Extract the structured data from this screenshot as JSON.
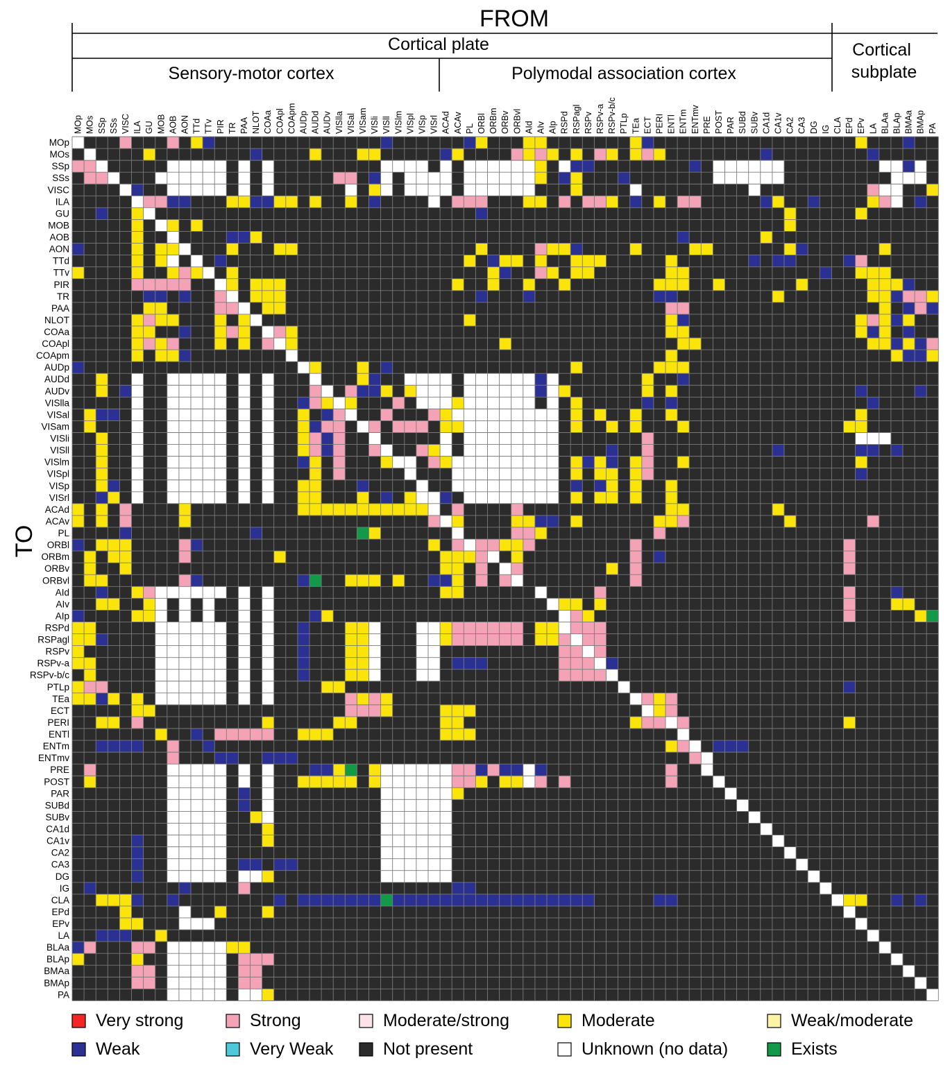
{
  "chart_data": {
    "type": "heatmap",
    "title": "FROM",
    "xlabel": "FROM",
    "ylabel": "TO",
    "groups_top": [
      {
        "label": "Cortical plate",
        "from": "MOp",
        "to": "IG"
      },
      {
        "label": "Cortical subplate",
        "from": "CLA",
        "to": "PA"
      }
    ],
    "groups_sub": [
      {
        "label": "Sensory-motor cortex",
        "from": "MOp",
        "to": "VISrl"
      },
      {
        "label": "Polymodal association cortex",
        "from": "ACAd",
        "to": "IG"
      }
    ],
    "columns": [
      "MOp",
      "MOs",
      "SSp",
      "SSs",
      "VISC",
      "ILA",
      "GU",
      "MOB",
      "AOB",
      "AON",
      "TTd",
      "TTv",
      "PIR",
      "TR",
      "PAA",
      "NLOT",
      "COAa",
      "COApl",
      "COApm",
      "AUDp",
      "AUDd",
      "AUDv",
      "VISlla",
      "VISal",
      "VISam",
      "VISli",
      "VISll",
      "VISlm",
      "VISpl",
      "VISp",
      "VISrl",
      "ACAd",
      "ACAv",
      "PL",
      "ORBl",
      "ORBm",
      "ORBv",
      "ORBvl",
      "AId",
      "AIv",
      "AIp",
      "RSPd",
      "RSPagl",
      "RSPv",
      "RSPv-a",
      "RSPv-b/c",
      "PTLp",
      "TEa",
      "ECT",
      "PERI",
      "ENTl",
      "ENTm",
      "ENTmv",
      "PRE",
      "POST",
      "PAR",
      "SUBd",
      "SUBv",
      "CA1d",
      "CA1v",
      "CA2",
      "CA3",
      "DG",
      "IG",
      "CLA",
      "EPd",
      "EPv",
      "LA",
      "BLAa",
      "BLAp",
      "BMAa",
      "BMAp",
      "PA"
    ],
    "rows": [
      "MOp",
      "MOs",
      "SSp",
      "SSs",
      "VISC",
      "ILA",
      "GU",
      "MOB",
      "AOB",
      "AON",
      "TTd",
      "TTv",
      "PIR",
      "TR",
      "PAA",
      "NLOT",
      "COAa",
      "COApl",
      "COApm",
      "AUDp",
      "AUDd",
      "AUDv",
      "VISlla",
      "VISal",
      "VISam",
      "VISli",
      "VISll",
      "VISlm",
      "VISpl",
      "VISp",
      "VISrl",
      "ACAd",
      "ACAv",
      "PL",
      "ORBl",
      "ORBm",
      "ORBv",
      "ORBvl",
      "AId",
      "AIv",
      "AIp",
      "RSPd",
      "RSPagl",
      "RSPv",
      "RSPv-a",
      "RSPv-b/c",
      "PTLp",
      "TEa",
      "ECT",
      "PERI",
      "ENTl",
      "ENTm",
      "ENTmv",
      "PRE",
      "POST",
      "PAR",
      "SUBd",
      "SUBv",
      "CA1d",
      "CA1v",
      "CA2",
      "CA3",
      "DG",
      "IG",
      "CLA",
      "EPd",
      "EPv",
      "LA",
      "BLAa",
      "BLAp",
      "BMAa",
      "BMAp",
      "PA"
    ],
    "legend": [
      {
        "code": "VS",
        "label": "Very strong",
        "color": "#f32525"
      },
      {
        "code": "S",
        "label": "Strong",
        "color": "#f4a3b6"
      },
      {
        "code": "MS",
        "label": "Moderate/strong",
        "color": "#fde2ea"
      },
      {
        "code": "M",
        "label": "Moderate",
        "color": "#fbe40a"
      },
      {
        "code": "WM",
        "label": "Weak/moderate",
        "color": "#fcf3a6"
      },
      {
        "code": "W",
        "label": "Weak",
        "color": "#2a3192"
      },
      {
        "code": "VW",
        "label": "Very Weak",
        "color": "#4fc8dc"
      },
      {
        "code": "N",
        "label": "Not present",
        "color": "#2b2b2b"
      },
      {
        "code": "U",
        "label": "Unknown (no data)",
        "color": "#ffffff"
      },
      {
        "code": "E",
        "label": "Exists",
        "color": "#139a48"
      }
    ],
    "cells": [
      "UNVVSVVVSVMWOOOONNNNNNNNNNWNNNNOOWMONNMMNNNNNNNMWONNNNNNOONNNNNNNNMNNNWNNNN",
      "OUNNNVMNNNNNNNNWNNNOMOOOMMOONNNWMVVVVSMSMVMVSMVMSMNNVNNNNNWNNNNNNNNWNNNNOW",
      "SSUVVVOOUUUUUNUNUNNNNNNNNNUUUUVUNUUUUUUMOUWWNNNNNNVNWNUUUUUUNNNNNNNVUUWUNNN",
      "VSSUVNOUUUUUUNUNUNNNNVSSNWUNUUUUNUUUUUUMNWMNNNWVNNVNNNUUUUUUNNNNNNNNVUUUNNNN",
      "OONVUWNVUUUUUNUNUNNNNVVUNMUNUUUUNUUUUUUVNVMNNNNUVNNVNNNNNUNNNNNNNNNSUUOOMNN",
      "OVONVUSSWWVVVMMWWMMNMNNMNWNNNNUVSSSVVVMMVSVSSMNWNMVSSNNNVNWMNVWNNNNMSUOWVVNWS",
      "OVWOVMUNNNNNNNNNNNNNNNNNNNNNNNNNNNWNNNNNNNNNNNNNNNNNNNNNNNNNMNNNNNMVNNNNNNNN",
      "NNNNNMNUMVMNNNNNNNNNNNNNNNNNNNNNNNNNNNNNNNNNNNNNNNNNNNNNNNNNMNNNNNVNVNNNNNN",
      "NNNNNMNVUVNNNWWMNNNNNNNNNNNNNNNNNNNNNNNNNNNNNNNNNNNWNNNNNNMNNNNNNNNNNNNNNNN",
      "WNNNNMNMMUVVOMNNNMMONNNNNNNNNNNNVNMNNVVSMMWNNNNMNNNNMMNNNNNNMWNNNNVVMNNNNNN",
      "NNNNNMNMUVUVWNNNNNVNNNNNNNNNNNNNNMOWMMVMNOMMMNNNNNMVNNNNNWNWWNNNNWSNVNNNNN",
      "MNNNNMNNMSMUVMVNNNNNNNNNNNNNNNNNNNVMWVVSMNMMNNNNNVMMNNNNNNNNNNNWNNMMMVNNNNN",
      "NNNNNSSSSSVVUMVMMMNNNNNNNNNNNNNNMNNMVVMVVMNNNNNNNMMMNNMNNNNNNMNNNNNMMMWNNNN",
      "NNNNNNWWNWVOSUVMMMNNNNNNNNNNNNNNNNWNNNWNNNNNNNNNNWWVNNNNNNNMNNNNNNVMMWSSM",
      "NNNNNVMMVNVVSSUVMMNNNNNNNNNNNNNNNNNNNNNVNNNNNNNNNNSSNNNNNNNNNNNNNNVVMNWSW",
      "NNNNNMSMMNNNMNMUNNNNNNNNNNNNNNNNNMNNNNNNNNNNNNNNNNMWNNNNNNNNNNNNNVMSMWMN",
      "NNNNNMMNNWNNMSMVUSMNNNNNNNNNNNNNNNNNNNNNNNNNNNNNNNMMNNNNNNNNNNNNNVMWMNWNNN",
      "NNNNNMSMSVVNMVMVSUMNNNNNNNNNNNNNNNNNMNNNNNNNNNNNNVNMMNNNNNNNNNNNNNVMMWMWS",
      "NNNNNMNMMWNNNNNNVVUNNNNNNNNNNNNNNNNNNNNNNNNNNNNNNNMVNNNNNNNNVNNNNNVVVMWWMWS",
      "WNNNNNNNNNNNNNNNNNNUMVVVMNWNNNNNNNNNNNNNNNMNNNNNNMMMVNNNNNNNNNNNNNVNNNNNVNN",
      "NNMVNUNNUUUUUNUNUNNVUVVVMWNNUUUUNUUUUUUWUNNNNNNNMVVWNNNNNNNNNNNNNVNNNNNNN",
      "NNMVWUNNUUUUUNUNUNNVSUVSWWMNMUUUNUUUUUUWUMNNNNNNMVMNNNNNNNNNNNNNNVWNNNNWN",
      "NNNNNUNNUUUUUNUNUNNWSMUMNNNSNUUUMUUUUUUNUNMNNNNNWNWVNNNNNNNNNNNNNVVWNNNVN",
      "NMWWNUNNUUUUUNUNUNNMVWSUVNSVVVSMUUUUUUUUUNMNMVNMNVMVNNNNNNNNVNNNNNMNNNNNN",
      "NMNVNUNNUUUUUNUNUNNMWSSVUSVSSSVMMUUUUUUUUNMNNMNMNVVMNNNNNNNVNNNNNMMNNNNNN",
      "NNMNNUNNUUUUUNUNUNNMSWSVVUVVVVNUNUUUUUUUUNNNNNNNSNNNNNNNNNNNNNNNNNUUUNNNN",
      "NNMNNUNNUUUUUNUNUNNMSWSVVSUVVSMUNUUUUUUUUNNNNWNNSNNNNNNNNNNWVNNNNNWWNWNNN",
      "NNMNNUNNUUUUUNUNUNNWMNSVVVMUUVSMUUUUUUUUUNMWMWNMSNNMNNNNNNNNNNNNNNMNNNNNN",
      "NNMNNUNNUUUUUNUNUNNNMNSVVVVNUVVNUUUUUUUUUNMNMMNMSNNVNNNNNNNNNNNNNNWVNNNNN",
      "VNMWNUNNUUUUUNUNUNNMMNVVWNNVVUNNUUUUUUUUUNWNWMNMNNMNNNNNNNNNNVNNNNNVVNNNNNN",
      "NNWMNUNNUUUUUNUNUNNMMNNVMNWNMUUWNUUUUUUUUNMNMMNMNNMNNNNNNNNNNNNNNNNNVNNNNNN",
      "MVMNSNNNNMNNNNNNNNNMMMMMMMMMMMUVSVVVVSNNNVVVVVVNNNMMNNNNNNVMNNNNNNNNNNVVVNN",
      "MVMNSNNNNMNNNNNNNNNNNNNNNNNNNNSUMVVVVMMWWNMVVVNNNMMSNNNNNNNNMNNNNNNSNNVNNNN",
      "NNNNWNVNNNNNVNNWNNNNNNNNEMNNNNVVUNNNNSSMNNNNNNNNNSNNNNNNNNNNNNNNNNVVVVVVNNNNV",
      "WNMMMNNNNSWNNNNNNNNNNNNNNNNNNNMVSUSSMMSNNVNNNNNSNNNNNNNNNNNNNNNNNSNNNNNNNNN",
      "NMNMMNNNNSNVVNNNNMNNNNNNNNNNNNVMMMSUVMNNNNNNNNNSNWNNNNNNNNNNNNNNNSNNNNNNNNN",
      "NMNVMNNNNNNNNNNNNNNNNNNNNNNNNNNMMVSVUSNNVNNNNMNSNNNNNNNNNNNNNNNNNSNNNNNNNNN",
      "NMMNNNNNNSWNNNNNNNNWENNMMMNMNNWWMVSVSUNNNNNNNNNSNNNNNNNNNNNNNNNNNVNNNNNNNNN",
      "OVWOVMSUUUUUUNUNUNNNNNNNNNNNNNNMMNNNNNNUVVVVSNNNNNVNNNNNNNNNNNNNNSNNNWNNNN",
      "NNMMVVMUNUNUNNUNUNNNNNNNNNNNNNNNNNNNNNNVUMMVMNNNNNNNNNNNNNNNNNNNNSNNNMMNNNN",
      "WNVVVMMUNUNUNNUNUNNNWMNNNNNNNNNNNNNNNNNVVUSMNNNNNNNNNNNNNNNNNNNNNSNNNNNMENW",
      "MMNVVVNUUUUUUNUNUNNWNNNMMUNNNUUMSSSSSSNMMUSSSNNNNVNNNNNNNNNNNNNNNNNNNNNNNN",
      "MMWNNNNUUUUUUNUNUNNWNNNMMUNNNUUMSSSSSSNMMSUSSNNNNVNNNNNNNNNNNNNNNNVNNNNNNNN",
      "MNNNNNNUUUUUUNUNUNNWNNNMMUNNNUUNNNNNNNNNNSSUSNNNNVNNNNNNNNNNNNNNNNNNNNNNNNN",
      "MMNNNNNUUUUUUNUNUNNWNNNMMUNNNUUNWWWNNNNNNSSSUWNNNNNNNNNNNNNNNNNNNNNNNNNNNN",
      "NMNNNNNUUUUUUNUNUNNWNNNMMUNNNUUNNNNNNNNNNSSSSUNNNNNNNNNNNNNNNNNNNNNNNNNNNNNNN",
      "MSSVNVNUUUUUUNUNUNNVVMMVVNNNNNNVNNNNNNNNNNNNNNUNNNNNNNNNNNNNNNNNNWNNNNNNNNNN",
      "MMWMNMNUUUUUUNUNUNNVVVVSMSMNNNNVNNNNNNNNNNNNNNNUSMSNNNNNNNNNNNNNNNNNNNNNNNNN",
      "VVNNNMMNNNNNNNNNNNNVVVVSSSMNNNNMMMNNNNNNNNNNNNNVUMSNNNNNNNNNNNNNNNNNNNNNNNNN",
      "VVMMVSVNNNNNNNNVMVNVVVMMVNNNNNNMMNNNNNNNNNNNNNNMSSUSNNNNNNNNNNNNNMNNNNNNNNNN",
      "VNNVNVVMNVWVSSSSSVVMMMVVNNNNNNNMMMNNNNNNNNNNNNNNNVVUVVVVVVNNNNNNNVVVVVVVVVSV",
      "NNWWWWNNSNNWNNNVNNNNNNNNNNNNNNNNNNNNNNNNNNNNNNNNVVMSUVWWWNNNNNNNNNNNNNNNNNN",
      "NNNNNNNNSNVNWWNNWWWNNNNNNNNNNNNNNNNNNNNNNNNNNNNNNNVVSUNNNNNNNNNNNNNNNNNNNNN",
      "NSNNNNNNUUUUUNUNUNNVWWMENMUUUUUUSSWSWWUWNVVVVVNNNNSNNUNNNNNNNNNNNNNNNNNNNNN",
      "NMNNNNNNUUUUUNUNUNNMMMMMNMUUUUUUSSMVMMUSNSVVVVNNNNSNNNUNNNNNNNNNNNNNNNNNNNNN",
      "NNNNNNNNUUUUUNWNUNNNNNNNNNUUUUUUMVNNNNNVNNNNNNNNNNNNNNNUNNNNNNNNNNNNNNNNNNN",
      "NNNNNNNNUUUUUNWNUNNNNNNNNNUUUUUUNNNNNNNNNNNNNNNNNNNNNNNNUNNNNNNNNNNNNNNNNNN",
      "NNNNNNNNUUUUUNNMUNNNNNNNNNUUUUUUNNNNNNNNNNNNNNNNNNNNNNNNNUNNNNNNNNNNNNNNNNN",
      "NNNNNNNNUUUUUNNNMNNNNNNNNNUUUUUUNNNNNNNNNNNNNNNNNNNNNNNNNNUNNNNNNNNNNNNNNNN",
      "NNNNNWNNUUUUUNNNMNNNNNNNNNUUUUUUNNNNNNNNNNNNNNNNNNNNNNNNNNNUNNNNNNNNNNNNNNN",
      "NNNNNWNNUUUUUNNNVNNNNNNNNNUUUUUUNNNNNNNNNNNNNNNNNNNNNNNNNNNNUNNNNNNNNNNNNNN",
      "NNNNNWNNUUUUUNWWNWWNNNNNNNUUUUUUNNNNNNNNNNNNNNNNNNNNNNNNNNNNNUNNNNNNNNNNNNN",
      "NNNNNWNNUUUUUNUUMNNNNNNNNNUUUUUUNNNNNNNNNNNNNNNNNNNNNNNNNNNNNNUNNNNNNNNNNNN",
      "NWNNNNNNNWNNNNSNNNNNNNNNNNNNNNNNWWNNNNNNNNNNNNNNNNNNNNNNNNNNNNNUNNNNNNNNNN",
      "VNMMMWVNWNNNNVNNNWNWWWWWWWEWWWWWWWWWWWWWWWWWNNNNNWWNNNNNNNNNNNNNUMMVVWNWNMN",
      "NNNNMNNNNUVNMNNNMNNNNNNNNNNNNNNNNNNNNNNNNNNNNNNNNNNNNNNNNNNNNNNNNUNNNNNNN",
      "NNNNMMNNNUUUNNNNNNNNNNNNNNNNNNNNNNNNNNNNNNNNNNNNNNNNNNNNNNNNNNNNNNUNNNNNN",
      "NNWWWVVMNNNNNNNNNNNNNNNNNNNNNNNNNNNNNNNNNNNNNNNNNNNNNNNNNNNNNNNNNNNUNNNNN",
      "WSNNNSSNUUUUUMMVNVVVNNNNNNNNNNNNNNNNNNNNNNNNNNNNNNNNNNNNNNNNNNNNNNNNUNNNN",
      "MNNNNMVNUUUUUNSSSNNNNNNNNNNNNNNNNNNNNNNNNNNNNNNNNNNNNNNNNNNNNNNNNNNNNUNNN",
      "NNNNNSSNUUUUUNSSVNNNNNNNNNNNNNNNNNNNNNNNNNNNNNNNNNNNNNNNNNNNNNNNNNNNNNUNN",
      "NNNNNSSNUUUUUNSSVNNNNNNNNNNNNNNNNNNNNNNNNNNNNNNNNNNNNNNNNNNNNNNNNNNNNNNUN",
      "NNNNNONNUUUUUNUUMNNNNNNNNNNNNNNNNNNNNNNNNNNNNNNNNNNNNNNNNNNNNNNNNNNNNNNNU"
    ]
  }
}
